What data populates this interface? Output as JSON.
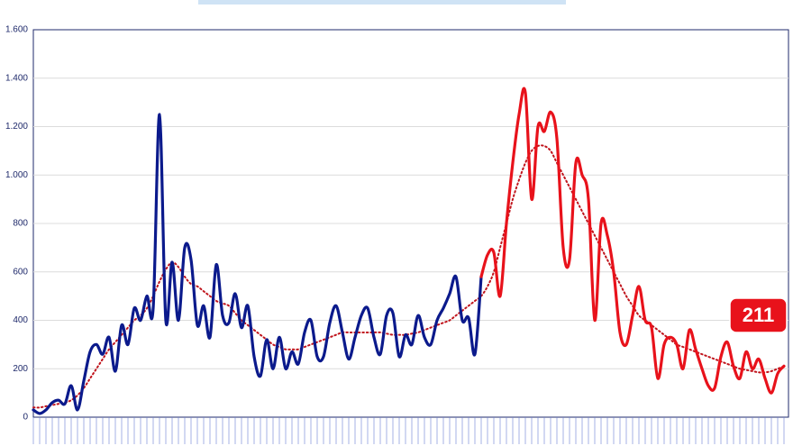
{
  "chart_data": {
    "type": "line",
    "categories": [
      null,
      null,
      null,
      null,
      null,
      null,
      null,
      null,
      null,
      null,
      null,
      null,
      null,
      null,
      null,
      null,
      null,
      null,
      null,
      null,
      null,
      null,
      null,
      null,
      null,
      null,
      null,
      null,
      null,
      null,
      null,
      null,
      null,
      null,
      null,
      null,
      null,
      null,
      null,
      null,
      null,
      null,
      null,
      null,
      null,
      null,
      null,
      null,
      null,
      null,
      null,
      null,
      null,
      null,
      null,
      null,
      null,
      null,
      null,
      null,
      null,
      null,
      null,
      null,
      null,
      null,
      null,
      null,
      null,
      null,
      null,
      null,
      null,
      null,
      null,
      null,
      null,
      null,
      null,
      null,
      null,
      null,
      null,
      null,
      null,
      null,
      null,
      null,
      null,
      null,
      null,
      null,
      null,
      null,
      null,
      null,
      null,
      null,
      null,
      null,
      null,
      null,
      null,
      null,
      null,
      null,
      null,
      null,
      null,
      null,
      null,
      null,
      null,
      null,
      null,
      null,
      null,
      null,
      null,
      null
    ],
    "series": [
      {
        "color": "#0b1a8c",
        "values": [
          30,
          15,
          30,
          60,
          70,
          55,
          130,
          30,
          150,
          270,
          300,
          260,
          330,
          190,
          380,
          300,
          450,
          400,
          500,
          450,
          1250,
          400,
          640,
          400,
          700,
          650,
          380,
          460,
          330,
          630,
          420,
          390,
          510,
          370,
          460,
          250,
          170,
          320,
          200,
          330,
          200,
          270,
          220,
          350,
          400,
          250,
          250,
          390,
          460,
          350,
          240,
          330,
          420,
          450,
          330,
          260,
          420,
          430,
          250,
          340,
          300,
          420,
          330,
          300,
          400,
          450,
          510,
          580,
          400,
          410,
          260,
          580,
          null,
          null,
          null,
          null,
          null,
          null,
          null,
          null,
          null,
          null,
          null,
          null,
          null,
          null,
          null,
          null,
          null,
          null,
          null,
          null,
          null,
          null,
          null,
          null,
          null,
          null,
          null,
          null,
          null,
          null,
          null,
          null,
          null,
          null,
          null,
          null,
          null,
          null,
          null,
          null,
          null,
          null,
          null,
          null,
          null,
          null,
          null,
          null
        ]
      },
      {
        "color": "#e8121b",
        "values": [
          null,
          null,
          null,
          null,
          null,
          null,
          null,
          null,
          null,
          null,
          null,
          null,
          null,
          null,
          null,
          null,
          null,
          null,
          null,
          null,
          null,
          null,
          null,
          null,
          null,
          null,
          null,
          null,
          null,
          null,
          null,
          null,
          null,
          null,
          null,
          null,
          null,
          null,
          null,
          null,
          null,
          null,
          null,
          null,
          null,
          null,
          null,
          null,
          null,
          null,
          null,
          null,
          null,
          null,
          null,
          null,
          null,
          null,
          null,
          null,
          null,
          null,
          null,
          null,
          null,
          null,
          null,
          null,
          null,
          null,
          null,
          580,
          670,
          680,
          500,
          800,
          1050,
          1250,
          1340,
          900,
          1200,
          1180,
          1260,
          1150,
          700,
          650,
          1050,
          1000,
          900,
          400,
          800,
          750,
          600,
          350,
          300,
          420,
          540,
          400,
          370,
          160,
          300,
          330,
          300,
          200,
          360,
          280,
          200,
          130,
          120,
          250,
          310,
          210,
          160,
          270,
          200,
          240,
          160,
          100,
          180,
          211
        ]
      },
      {
        "color": "#c0141c",
        "dotted": true,
        "values": [
          40,
          40,
          45,
          50,
          55,
          60,
          70,
          90,
          120,
          160,
          200,
          240,
          280,
          310,
          340,
          370,
          400,
          420,
          450,
          500,
          560,
          610,
          640,
          620,
          580,
          550,
          540,
          520,
          500,
          480,
          470,
          460,
          430,
          400,
          380,
          360,
          340,
          320,
          300,
          290,
          280,
          280,
          280,
          290,
          300,
          310,
          320,
          330,
          340,
          350,
          350,
          350,
          350,
          350,
          350,
          350,
          345,
          340,
          340,
          340,
          345,
          350,
          360,
          370,
          380,
          390,
          400,
          420,
          440,
          460,
          480,
          500,
          540,
          600,
          700,
          800,
          900,
          980,
          1050,
          1100,
          1120,
          1120,
          1100,
          1050,
          1000,
          950,
          900,
          850,
          800,
          750,
          700,
          650,
          600,
          550,
          500,
          460,
          420,
          400,
          380,
          360,
          340,
          320,
          300,
          290,
          280,
          270,
          260,
          250,
          240,
          230,
          220,
          210,
          200,
          195,
          190,
          185,
          185,
          190,
          200,
          210
        ]
      }
    ],
    "ylim": [
      0,
      1600
    ],
    "yticks": [
      0,
      200,
      400,
      600,
      800,
      {
        "value": 1000,
        "label": "1.000"
      },
      {
        "value": 1200,
        "label": "1.200"
      },
      {
        "value": 1400,
        "label": "1.400"
      },
      {
        "value": 1600,
        "label": "1.600"
      }
    ],
    "grid": true
  }
}
